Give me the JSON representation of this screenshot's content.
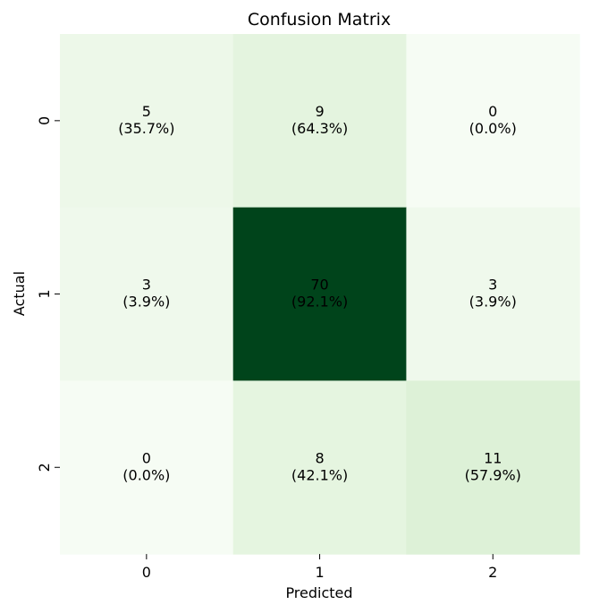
{
  "chart_data": {
    "type": "heatmap",
    "title": "Confusion Matrix",
    "xlabel": "Predicted",
    "ylabel": "Actual",
    "x_categories": [
      "0",
      "1",
      "2"
    ],
    "y_categories": [
      "0",
      "1",
      "2"
    ],
    "counts": [
      [
        5,
        9,
        0
      ],
      [
        3,
        70,
        3
      ],
      [
        0,
        8,
        11
      ]
    ],
    "percent_labels": [
      [
        "(35.7%)",
        "(64.3%)",
        "(0.0%)"
      ],
      [
        "(3.9%)",
        "(92.1%)",
        "(3.9%)"
      ],
      [
        "(0.0%)",
        "(42.1%)",
        "(57.9%)"
      ]
    ],
    "colormap": "Greens",
    "colorbar": false,
    "cell_colors": [
      [
        "#edf8e9",
        "#e4f4df",
        "#f6fcf4"
      ],
      [
        "#eff9ec",
        "#00441b",
        "#eff9ec"
      ],
      [
        "#f6fcf4",
        "#e5f5e0",
        "#ddf1d7"
      ]
    ],
    "text_color": "#000000"
  }
}
